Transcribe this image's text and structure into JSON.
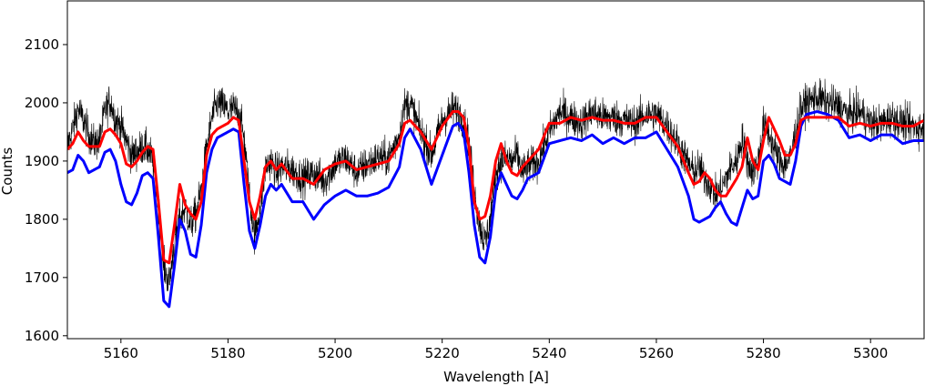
{
  "chart_data": {
    "type": "line",
    "title": "",
    "xlabel": "Wavelength [A]",
    "ylabel": "Counts",
    "xlim": [
      5150,
      5310
    ],
    "ylim": [
      1595,
      2175
    ],
    "grid": false,
    "x_ticks": [
      5160,
      5180,
      5200,
      5220,
      5240,
      5260,
      5280,
      5300
    ],
    "y_ticks": [
      1600,
      1700,
      1800,
      1900,
      2000,
      2100
    ],
    "x_tick_labels": [
      "5160",
      "5180",
      "5200",
      "5220",
      "5240",
      "5260",
      "5280",
      "5300"
    ],
    "y_tick_labels": [
      "1600",
      "1700",
      "1800",
      "1900",
      "2000",
      "2100"
    ],
    "series": [
      {
        "color": "#000000",
        "style": "thin noisy line",
        "x": [
          5150,
          5151,
          5152,
          5153,
          5154,
          5155,
          5156,
          5157,
          5158,
          5159,
          5160,
          5161,
          5162,
          5163,
          5164,
          5165,
          5166,
          5167,
          5168,
          5169,
          5170,
          5171,
          5172,
          5173,
          5174,
          5175,
          5176,
          5177,
          5178,
          5179,
          5180,
          5181,
          5182,
          5183,
          5184,
          5185,
          5186,
          5187,
          5188,
          5189,
          5190,
          5192,
          5194,
          5196,
          5198,
          5200,
          5202,
          5204,
          5206,
          5208,
          5210,
          5212,
          5213,
          5214,
          5216,
          5218,
          5220,
          5222,
          5223,
          5224,
          5225,
          5226,
          5227,
          5228,
          5229,
          5230,
          5231,
          5232,
          5233,
          5234,
          5235,
          5236,
          5238,
          5240,
          5242,
          5244,
          5246,
          5248,
          5250,
          5252,
          5254,
          5256,
          5258,
          5260,
          5262,
          5264,
          5266,
          5267,
          5268,
          5269,
          5270,
          5271,
          5272,
          5273,
          5274,
          5275,
          5276,
          5277,
          5278,
          5279,
          5280,
          5281,
          5282,
          5283,
          5284,
          5285,
          5286,
          5287,
          5288,
          5290,
          5292,
          5294,
          5296,
          5298,
          5300,
          5302,
          5304,
          5306,
          5308,
          5310
        ],
        "values": [
          1925,
          1955,
          1990,
          1970,
          1945,
          1930,
          1935,
          1985,
          2005,
          1970,
          1960,
          1935,
          1910,
          1915,
          1925,
          1920,
          1900,
          1820,
          1720,
          1690,
          1760,
          1800,
          1820,
          1790,
          1810,
          1850,
          1920,
          1975,
          2000,
          1995,
          1985,
          1990,
          1985,
          1940,
          1840,
          1770,
          1820,
          1890,
          1900,
          1880,
          1890,
          1885,
          1870,
          1880,
          1865,
          1895,
          1905,
          1880,
          1895,
          1905,
          1905,
          1945,
          1995,
          2000,
          1950,
          1910,
          1970,
          1990,
          1985,
          1970,
          1930,
          1850,
          1790,
          1760,
          1800,
          1880,
          1900,
          1905,
          1900,
          1910,
          1880,
          1890,
          1900,
          1950,
          1985,
          1975,
          1965,
          1985,
          1975,
          1975,
          1970,
          1965,
          1980,
          1980,
          1960,
          1930,
          1895,
          1880,
          1890,
          1870,
          1860,
          1840,
          1850,
          1870,
          1890,
          1900,
          1940,
          1900,
          1880,
          1900,
          1960,
          1950,
          1920,
          1900,
          1895,
          1905,
          1950,
          1990,
          2000,
          2010,
          2000,
          1995,
          1980,
          1985,
          1965,
          1965,
          1975,
          1965,
          1960,
          1955
        ],
        "noise": 40
      },
      {
        "color": "#0000ff",
        "style": "thick line",
        "x": [
          5150,
          5151,
          5152,
          5153,
          5154,
          5155,
          5156,
          5157,
          5158,
          5159,
          5160,
          5161,
          5162,
          5163,
          5164,
          5165,
          5166,
          5167,
          5168,
          5169,
          5170,
          5171,
          5172,
          5173,
          5174,
          5175,
          5176,
          5177,
          5178,
          5179,
          5180,
          5181,
          5182,
          5183,
          5184,
          5185,
          5186,
          5187,
          5188,
          5189,
          5190,
          5192,
          5194,
          5196,
          5198,
          5200,
          5202,
          5204,
          5206,
          5208,
          5210,
          5212,
          5213,
          5214,
          5216,
          5218,
          5220,
          5222,
          5223,
          5224,
          5225,
          5226,
          5227,
          5228,
          5229,
          5230,
          5231,
          5232,
          5233,
          5234,
          5235,
          5236,
          5238,
          5240,
          5242,
          5244,
          5246,
          5248,
          5250,
          5252,
          5254,
          5256,
          5258,
          5260,
          5262,
          5264,
          5266,
          5267,
          5268,
          5269,
          5270,
          5271,
          5272,
          5273,
          5274,
          5275,
          5276,
          5277,
          5278,
          5279,
          5280,
          5281,
          5282,
          5283,
          5284,
          5285,
          5286,
          5287,
          5288,
          5290,
          5292,
          5294,
          5296,
          5298,
          5300,
          5302,
          5304,
          5306,
          5308,
          5310
        ],
        "values": [
          1880,
          1885,
          1910,
          1900,
          1880,
          1885,
          1890,
          1915,
          1920,
          1900,
          1860,
          1830,
          1825,
          1845,
          1875,
          1880,
          1870,
          1770,
          1660,
          1650,
          1720,
          1800,
          1780,
          1740,
          1735,
          1790,
          1880,
          1920,
          1940,
          1945,
          1950,
          1955,
          1950,
          1860,
          1780,
          1750,
          1790,
          1840,
          1860,
          1850,
          1860,
          1830,
          1830,
          1800,
          1825,
          1840,
          1850,
          1840,
          1840,
          1845,
          1855,
          1890,
          1940,
          1955,
          1920,
          1860,
          1910,
          1960,
          1965,
          1950,
          1880,
          1790,
          1735,
          1725,
          1770,
          1850,
          1880,
          1860,
          1840,
          1835,
          1850,
          1870,
          1880,
          1930,
          1935,
          1940,
          1935,
          1945,
          1930,
          1940,
          1930,
          1940,
          1940,
          1950,
          1920,
          1890,
          1840,
          1800,
          1795,
          1800,
          1805,
          1820,
          1830,
          1810,
          1795,
          1790,
          1820,
          1850,
          1835,
          1840,
          1900,
          1910,
          1895,
          1870,
          1865,
          1860,
          1900,
          1960,
          1980,
          1985,
          1980,
          1970,
          1940,
          1945,
          1935,
          1945,
          1945,
          1930,
          1935,
          1935
        ]
      },
      {
        "color": "#ff0000",
        "style": "thick line",
        "x": [
          5150,
          5151,
          5152,
          5153,
          5154,
          5155,
          5156,
          5157,
          5158,
          5159,
          5160,
          5161,
          5162,
          5163,
          5164,
          5165,
          5166,
          5167,
          5168,
          5169,
          5170,
          5171,
          5172,
          5173,
          5174,
          5175,
          5176,
          5177,
          5178,
          5179,
          5180,
          5181,
          5182,
          5183,
          5184,
          5185,
          5186,
          5187,
          5188,
          5189,
          5190,
          5192,
          5194,
          5196,
          5198,
          5200,
          5202,
          5204,
          5206,
          5208,
          5210,
          5212,
          5213,
          5214,
          5216,
          5218,
          5220,
          5222,
          5223,
          5224,
          5225,
          5226,
          5227,
          5228,
          5229,
          5230,
          5231,
          5232,
          5233,
          5234,
          5235,
          5236,
          5238,
          5240,
          5242,
          5244,
          5246,
          5248,
          5250,
          5252,
          5254,
          5256,
          5258,
          5260,
          5262,
          5264,
          5266,
          5267,
          5268,
          5269,
          5270,
          5271,
          5272,
          5273,
          5274,
          5275,
          5276,
          5277,
          5278,
          5279,
          5280,
          5281,
          5282,
          5283,
          5284,
          5285,
          5286,
          5287,
          5288,
          5290,
          5292,
          5294,
          5296,
          5298,
          5300,
          5302,
          5304,
          5306,
          5308,
          5310
        ],
        "values": [
          1920,
          1930,
          1950,
          1935,
          1925,
          1925,
          1925,
          1950,
          1955,
          1945,
          1930,
          1895,
          1890,
          1900,
          1915,
          1925,
          1920,
          1830,
          1730,
          1725,
          1790,
          1860,
          1825,
          1810,
          1800,
          1830,
          1910,
          1945,
          1955,
          1960,
          1965,
          1975,
          1970,
          1900,
          1830,
          1800,
          1840,
          1890,
          1900,
          1885,
          1895,
          1870,
          1870,
          1860,
          1885,
          1895,
          1900,
          1885,
          1890,
          1895,
          1900,
          1930,
          1965,
          1970,
          1950,
          1920,
          1960,
          1985,
          1985,
          1975,
          1925,
          1830,
          1800,
          1805,
          1840,
          1900,
          1930,
          1900,
          1880,
          1875,
          1890,
          1900,
          1920,
          1965,
          1965,
          1975,
          1970,
          1975,
          1970,
          1970,
          1965,
          1965,
          1975,
          1975,
          1950,
          1925,
          1880,
          1860,
          1865,
          1880,
          1870,
          1850,
          1840,
          1840,
          1855,
          1870,
          1890,
          1940,
          1900,
          1885,
          1935,
          1975,
          1955,
          1935,
          1910,
          1910,
          1930,
          1970,
          1975,
          1975,
          1975,
          1975,
          1960,
          1965,
          1960,
          1965,
          1965,
          1960,
          1960,
          1970
        ]
      }
    ]
  }
}
